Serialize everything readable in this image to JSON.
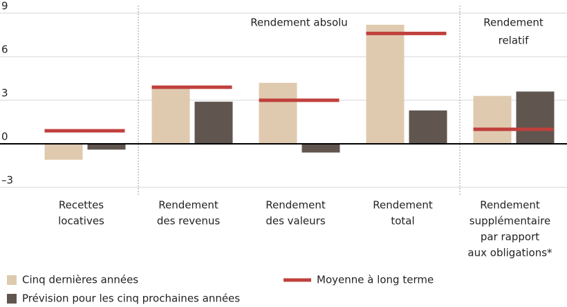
{
  "chart_data": {
    "type": "bar",
    "categories": [
      [
        "Recettes",
        "locatives"
      ],
      [
        "Rendement",
        "des revenus"
      ],
      [
        "Rendement",
        "des valeurs"
      ],
      [
        "Rendement",
        "total"
      ],
      [
        "Rendement",
        "supplémentaire",
        "par rapport",
        "aux obligations*"
      ]
    ],
    "series": [
      {
        "name": "Cinq dernières années",
        "color": "#dfcab0",
        "values": [
          -1.1,
          3.9,
          4.2,
          8.2,
          3.3
        ]
      },
      {
        "name": "Prévision pour les cinq prochaines années",
        "color": "#60564f",
        "values": [
          -0.4,
          2.9,
          -0.6,
          2.3,
          3.6
        ]
      },
      {
        "name": "Moyenne à long terme",
        "color": "#c0403c",
        "style": "line",
        "values": [
          0.9,
          3.9,
          3.0,
          7.6,
          1.0
        ]
      }
    ],
    "annotations": [
      [
        "Rendement absolu"
      ],
      [
        "Rendement",
        "relatif"
      ]
    ],
    "ylim": [
      -3.5,
      9.5
    ],
    "yticks": [
      {
        "value": -3,
        "label": "–3"
      },
      0,
      3,
      6,
      9
    ],
    "grid": true
  }
}
